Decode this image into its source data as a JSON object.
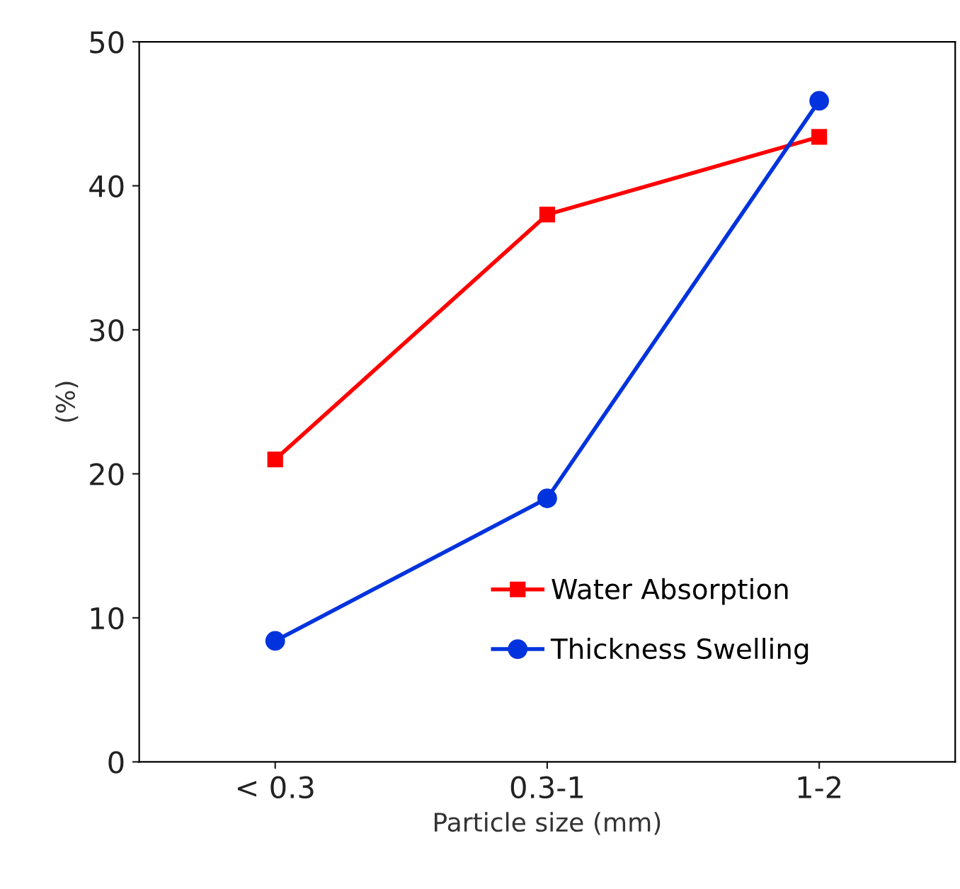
{
  "chart_data": {
    "type": "line",
    "xlabel": "Particle size (mm)",
    "ylabel": "(%)",
    "categories": [
      "< 0.3",
      "0.3-1",
      "1-2"
    ],
    "series": [
      {
        "name": "Water Absorption",
        "color": "#ff0000",
        "marker": "square",
        "values": [
          21,
          38,
          43.4
        ]
      },
      {
        "name": "Thickness Swelling",
        "color": "#0033dd",
        "marker": "circle",
        "values": [
          8.4,
          18.3,
          45.9
        ]
      }
    ],
    "ylim": [
      0,
      50
    ],
    "yticks": [
      0,
      10,
      20,
      30,
      40,
      50
    ],
    "grid": false,
    "legend": "bottom right",
    "line_style": "solid"
  }
}
